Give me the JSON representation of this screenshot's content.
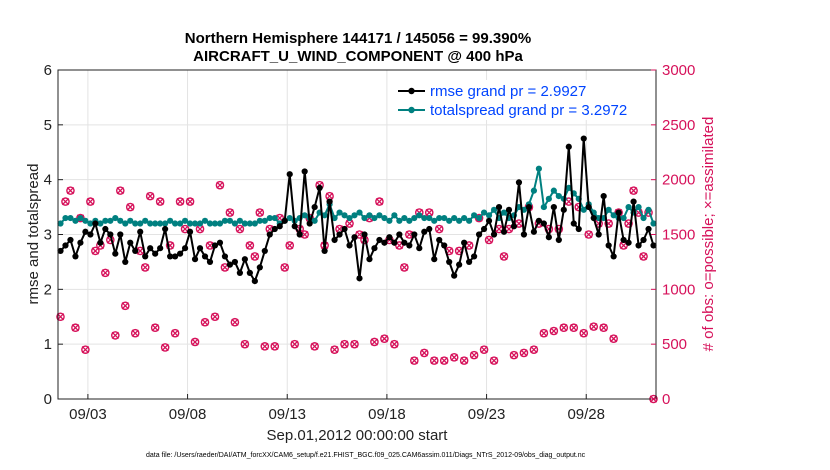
{
  "chart_data": {
    "type": "line",
    "title": "Northern Hemisphere 144171 / 145056 = 99.390%",
    "subtitle": "AIRCRAFT_U_WIND_COMPONENT @ 400 hPa",
    "xlabel": "Sep.01,2012 00:00:00 start",
    "ylabel": "rmse and totalspread",
    "y2label": "# of obs: o=possible; ×=assimilated",
    "xlim": [
      1.5,
      31.5
    ],
    "ylim": [
      0,
      6
    ],
    "y2lim": [
      0,
      3000
    ],
    "xticks": [
      3,
      8,
      13,
      18,
      23,
      28
    ],
    "xtick_labels": [
      "09/03",
      "09/08",
      "09/13",
      "09/18",
      "09/23",
      "09/28"
    ],
    "yticks": [
      "0",
      "1",
      "2",
      "3",
      "4",
      "5",
      "6"
    ],
    "y2ticks": [
      "0",
      "500",
      "1000",
      "1500",
      "2000",
      "2500",
      "3000"
    ],
    "grid": true,
    "legend_position": "top-right",
    "colors": {
      "rmse": "#000000",
      "spread": "#008080",
      "obs": "#d6115a"
    },
    "footnote": "data file: /Users/raeder/DAI/ATM_forcXX/CAM6_setup/f.e21.FHIST_BGC.f09_025.CAM6assim.011/Diags_NTrS_2012-09/obs_diag_output.nc",
    "series": [
      {
        "name": "rmse grand pr = 2.9927",
        "x": [
          1.625,
          1.875,
          2.125,
          2.375,
          2.625,
          2.875,
          3.125,
          3.375,
          3.625,
          3.875,
          4.125,
          4.375,
          4.625,
          4.875,
          5.125,
          5.375,
          5.625,
          5.875,
          6.125,
          6.375,
          6.625,
          6.875,
          7.125,
          7.375,
          7.625,
          7.875,
          8.125,
          8.375,
          8.625,
          8.875,
          9.125,
          9.375,
          9.625,
          9.875,
          10.125,
          10.375,
          10.625,
          10.875,
          11.125,
          11.375,
          11.625,
          11.875,
          12.125,
          12.375,
          12.625,
          12.875,
          13.125,
          13.375,
          13.625,
          13.875,
          14.125,
          14.375,
          14.625,
          14.875,
          15.125,
          15.375,
          15.625,
          15.875,
          16.125,
          16.375,
          16.625,
          16.875,
          17.125,
          17.375,
          17.625,
          17.875,
          18.125,
          18.375,
          18.625,
          18.875,
          19.125,
          19.375,
          19.625,
          19.875,
          20.125,
          20.375,
          20.625,
          20.875,
          21.125,
          21.375,
          21.625,
          21.875,
          22.125,
          22.375,
          22.625,
          22.875,
          23.125,
          23.375,
          23.625,
          23.875,
          24.125,
          24.375,
          24.625,
          24.875,
          25.125,
          25.375,
          25.625,
          25.875,
          26.125,
          26.375,
          26.625,
          26.875,
          27.125,
          27.375,
          27.625,
          27.875,
          28.125,
          28.375,
          28.625,
          28.875,
          29.125,
          29.375,
          29.625,
          29.875,
          30.125,
          30.375,
          30.625,
          30.875,
          31.125,
          31.375
        ],
        "values": [
          2.7,
          2.8,
          2.9,
          2.6,
          2.85,
          3.05,
          3.0,
          3.2,
          2.85,
          3.1,
          3.0,
          2.65,
          3.0,
          2.5,
          2.85,
          2.7,
          3.05,
          2.6,
          2.75,
          2.65,
          2.75,
          3.1,
          2.6,
          2.6,
          2.65,
          2.75,
          3.05,
          2.55,
          2.75,
          2.6,
          2.5,
          2.8,
          2.85,
          2.6,
          2.45,
          2.5,
          2.3,
          2.55,
          2.3,
          2.15,
          2.4,
          2.7,
          3.0,
          3.1,
          3.15,
          3.25,
          4.1,
          3.15,
          3.0,
          4.15,
          3.2,
          3.5,
          3.85,
          2.7,
          3.6,
          2.9,
          3.0,
          3.1,
          2.8,
          2.95,
          2.2,
          3.0,
          2.55,
          2.75,
          2.9,
          2.85,
          2.95,
          2.85,
          3.0,
          2.85,
          2.8,
          3.0,
          2.75,
          3.05,
          3.1,
          2.55,
          2.9,
          2.8,
          2.5,
          2.25,
          2.45,
          2.85,
          2.5,
          2.6,
          3.0,
          3.1,
          3.25,
          3.0,
          3.5,
          3.05,
          3.45,
          3.15,
          3.95,
          3.0,
          3.5,
          3.05,
          3.25,
          3.2,
          2.95,
          3.5,
          2.9,
          3.45,
          4.6,
          3.2,
          3.1,
          4.75,
          3.5,
          3.3,
          3.0,
          3.7,
          2.8,
          2.6,
          3.4,
          2.9,
          2.85,
          3.6,
          2.8,
          2.9,
          3.1,
          2.8
        ],
        "color": "#000000"
      },
      {
        "name": "totalspread grand pr = 3.2972",
        "x": [
          1.625,
          1.875,
          2.125,
          2.375,
          2.625,
          2.875,
          3.125,
          3.375,
          3.625,
          3.875,
          4.125,
          4.375,
          4.625,
          4.875,
          5.125,
          5.375,
          5.625,
          5.875,
          6.125,
          6.375,
          6.625,
          6.875,
          7.125,
          7.375,
          7.625,
          7.875,
          8.125,
          8.375,
          8.625,
          8.875,
          9.125,
          9.375,
          9.625,
          9.875,
          10.125,
          10.375,
          10.625,
          10.875,
          11.125,
          11.375,
          11.625,
          11.875,
          12.125,
          12.375,
          12.625,
          12.875,
          13.125,
          13.375,
          13.625,
          13.875,
          14.125,
          14.375,
          14.625,
          14.875,
          15.125,
          15.375,
          15.625,
          15.875,
          16.125,
          16.375,
          16.625,
          16.875,
          17.125,
          17.375,
          17.625,
          17.875,
          18.125,
          18.375,
          18.625,
          18.875,
          19.125,
          19.375,
          19.625,
          19.875,
          20.125,
          20.375,
          20.625,
          20.875,
          21.125,
          21.375,
          21.625,
          21.875,
          22.125,
          22.375,
          22.625,
          22.875,
          23.125,
          23.375,
          23.625,
          23.875,
          24.125,
          24.375,
          24.625,
          24.875,
          25.125,
          25.375,
          25.625,
          25.875,
          26.125,
          26.375,
          26.625,
          26.875,
          27.125,
          27.375,
          27.625,
          27.875,
          28.125,
          28.375,
          28.625,
          28.875,
          29.125,
          29.375,
          29.625,
          29.875,
          30.125,
          30.375,
          30.625,
          30.875,
          31.125,
          31.375
        ],
        "values": [
          3.2,
          3.3,
          3.3,
          3.25,
          3.3,
          3.25,
          3.2,
          3.25,
          3.2,
          3.25,
          3.25,
          3.3,
          3.25,
          3.2,
          3.25,
          3.2,
          3.2,
          3.25,
          3.2,
          3.2,
          3.2,
          3.2,
          3.25,
          3.2,
          3.2,
          3.25,
          3.2,
          3.2,
          3.2,
          3.25,
          3.2,
          3.2,
          3.2,
          3.25,
          3.25,
          3.2,
          3.25,
          3.2,
          3.2,
          3.2,
          3.25,
          3.25,
          3.3,
          3.3,
          3.2,
          3.25,
          3.3,
          3.25,
          3.3,
          3.35,
          3.3,
          3.25,
          3.4,
          3.35,
          3.55,
          3.3,
          3.4,
          3.35,
          3.3,
          3.35,
          3.4,
          3.3,
          3.35,
          3.3,
          3.35,
          3.3,
          3.25,
          3.35,
          3.25,
          3.3,
          3.25,
          3.3,
          3.35,
          3.3,
          3.3,
          3.25,
          3.3,
          3.3,
          3.25,
          3.3,
          3.25,
          3.3,
          3.25,
          3.35,
          3.3,
          3.4,
          3.35,
          3.45,
          3.3,
          3.4,
          3.3,
          3.35,
          3.5,
          3.45,
          3.55,
          3.8,
          4.2,
          3.5,
          3.65,
          3.8,
          3.7,
          3.65,
          3.85,
          3.75,
          3.65,
          3.45,
          3.55,
          3.4,
          3.3,
          3.3,
          3.45,
          3.35,
          3.3,
          3.3,
          3.5,
          3.4,
          3.5,
          3.3,
          3.45,
          3.2
        ],
        "color": "#008080"
      },
      {
        "name": "obs possible",
        "x": [
          1.625,
          2.125,
          2.625,
          3.125,
          3.625,
          4.125,
          4.625,
          5.125,
          5.625,
          6.125,
          6.625,
          7.125,
          7.625,
          8.125,
          8.625,
          9.125,
          9.625,
          10.125,
          10.625,
          11.125,
          11.625,
          12.125,
          12.625,
          13.125,
          13.625,
          14.125,
          14.625,
          15.125,
          15.625,
          16.125,
          16.625,
          17.125,
          17.625,
          18.125,
          18.625,
          19.125,
          19.625,
          20.125,
          20.625,
          21.125,
          21.625,
          22.125,
          22.625,
          23.125,
          23.625,
          24.125,
          24.625,
          25.125,
          25.625,
          26.125,
          26.625,
          27.125,
          27.625,
          28.125,
          28.625,
          29.125,
          29.625,
          30.125,
          30.625,
          31.125,
          1.875,
          2.375,
          2.875,
          3.375,
          3.875,
          4.375,
          4.875,
          5.375,
          5.875,
          6.375,
          6.875,
          7.375,
          7.875,
          8.375,
          8.875,
          9.375,
          9.875,
          10.375,
          10.875,
          11.375,
          11.875,
          12.375,
          12.875,
          13.375,
          13.875,
          14.375,
          14.875,
          15.375,
          15.875,
          16.375,
          16.875,
          17.375,
          17.875,
          18.375,
          18.875,
          19.375,
          19.875,
          20.375,
          20.875,
          21.375,
          21.875,
          22.375,
          22.875,
          23.375,
          23.875,
          24.375,
          24.875,
          25.375,
          25.875,
          26.375,
          26.875,
          27.375,
          27.875,
          28.375,
          28.875,
          29.375,
          29.875,
          30.375,
          30.875,
          31.375
        ],
        "values": [
          750,
          1900,
          1650,
          1800,
          1400,
          1450,
          1900,
          1750,
          1350,
          1850,
          1800,
          1400,
          1800,
          1800,
          1550,
          1400,
          1950,
          1700,
          1550,
          1400,
          1700,
          1550,
          1650,
          1400,
          1550,
          1650,
          1950,
          1850,
          1550,
          1600,
          1500,
          1650,
          1800,
          1450,
          1400,
          1500,
          1700,
          1700,
          1550,
          1350,
          1350,
          1400,
          1650,
          1450,
          1550,
          1550,
          1600,
          1750,
          1600,
          1550,
          1550,
          1800,
          1750,
          1500,
          1600,
          1600,
          1700,
          1600,
          1700,
          1700,
          1800,
          650,
          450,
          1350,
          1150,
          580,
          850,
          600,
          1200,
          650,
          470,
          600,
          1550,
          520,
          700,
          750,
          1200,
          700,
          500,
          1300,
          480,
          480,
          1200,
          500,
          1500,
          480,
          1400,
          450,
          500,
          500,
          1450,
          520,
          550,
          500,
          1200,
          350,
          420,
          350,
          350,
          380,
          350,
          400,
          450,
          350,
          1300,
          400,
          420,
          450,
          600,
          620,
          650,
          650,
          600,
          660,
          650,
          550,
          1400,
          1900,
          1300,
          0
        ],
        "color": "#d6115a"
      }
    ]
  }
}
